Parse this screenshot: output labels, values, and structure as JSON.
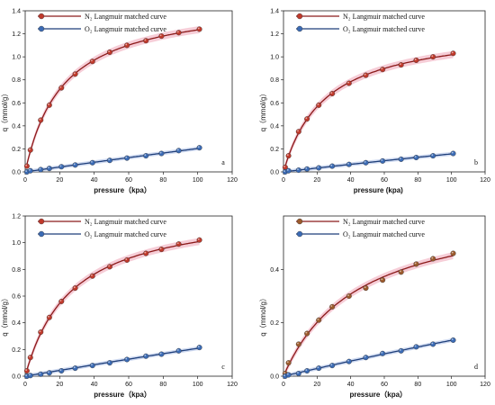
{
  "chart_data": [
    {
      "type": "line",
      "panel_label": "a",
      "xlabel": "pressure（kpa）",
      "ylabel": "q（mmol/g）",
      "xlim": [
        0,
        120
      ],
      "ylim": [
        0,
        1.4
      ],
      "xticks": [
        "0",
        "20",
        "40",
        "60",
        "80",
        "100",
        "120"
      ],
      "yticks": [
        "0.0",
        "0.2",
        "0.4",
        "0.6",
        "0.8",
        "1.0",
        "1.2",
        "1.4"
      ],
      "legend_placement": "top-left",
      "grid": false,
      "series": [
        {
          "name": "N₂ Langmuir matched curve",
          "marker_color": "#c0392b",
          "line_color": "#8b1a1a",
          "shade_color": "#f2b8c6",
          "x": [
            1,
            3,
            9,
            14,
            21,
            29,
            39,
            49,
            59,
            70,
            79,
            89,
            101
          ],
          "y": [
            0.05,
            0.19,
            0.45,
            0.58,
            0.73,
            0.85,
            0.96,
            1.04,
            1.1,
            1.14,
            1.18,
            1.21,
            1.24
          ]
        },
        {
          "name": "O₂ Langmuir matched curve",
          "marker_color": "#3b6bb5",
          "line_color": "#1f3f7a",
          "shade_color": "#b9c9ea",
          "x": [
            1,
            3,
            9,
            14,
            21,
            29,
            39,
            49,
            59,
            70,
            79,
            89,
            101
          ],
          "y": [
            0.0,
            0.01,
            0.02,
            0.03,
            0.045,
            0.06,
            0.08,
            0.1,
            0.12,
            0.14,
            0.16,
            0.185,
            0.21
          ]
        }
      ]
    },
    {
      "type": "line",
      "panel_label": "b",
      "xlabel": "pressure (kpa)",
      "ylabel": "q（mmol/g）",
      "xlim": [
        0,
        120
      ],
      "ylim": [
        0,
        1.4
      ],
      "xticks": [
        "0",
        "20",
        "40",
        "60",
        "80",
        "100",
        "120"
      ],
      "yticks": [
        "0.0",
        "0.2",
        "0.4",
        "0.6",
        "0.8",
        "1.0",
        "1.2",
        "1.4"
      ],
      "legend_placement": "top-left",
      "grid": false,
      "series": [
        {
          "name": "N₂ Langmuir matched curve",
          "marker_color": "#c0392b",
          "line_color": "#8b1a1a",
          "shade_color": "#f2b8c6",
          "x": [
            1,
            3,
            9,
            14,
            21,
            29,
            39,
            49,
            59,
            70,
            79,
            89,
            101
          ],
          "y": [
            0.04,
            0.14,
            0.35,
            0.46,
            0.58,
            0.68,
            0.77,
            0.84,
            0.89,
            0.93,
            0.97,
            1.0,
            1.03
          ]
        },
        {
          "name": "O₂ Langmuir matched curve",
          "marker_color": "#3b6bb5",
          "line_color": "#1f3f7a",
          "shade_color": "#b9c9ea",
          "x": [
            1,
            3,
            9,
            14,
            21,
            29,
            39,
            49,
            59,
            70,
            79,
            89,
            101
          ],
          "y": [
            0.0,
            0.01,
            0.015,
            0.025,
            0.035,
            0.05,
            0.065,
            0.08,
            0.095,
            0.11,
            0.125,
            0.14,
            0.16
          ]
        }
      ]
    },
    {
      "type": "line",
      "panel_label": "c",
      "xlabel": "pressure（kpa）",
      "ylabel": "q（mmol/g）",
      "xlim": [
        0,
        120
      ],
      "ylim": [
        0,
        1.2
      ],
      "xticks": [
        "0",
        "20",
        "40",
        "60",
        "80",
        "100",
        "120"
      ],
      "yticks": [
        "0.0",
        "0.2",
        "0.4",
        "0.6",
        "0.8",
        "1.0",
        "1.2"
      ],
      "legend_placement": "top-left",
      "grid": false,
      "series": [
        {
          "name": "N₂ Langmuir matched curve",
          "marker_color": "#c0392b",
          "line_color": "#8b1a1a",
          "shade_color": "#f2b8c6",
          "x": [
            1,
            3,
            9,
            14,
            21,
            29,
            39,
            49,
            59,
            70,
            79,
            89,
            101
          ],
          "y": [
            0.04,
            0.14,
            0.33,
            0.44,
            0.56,
            0.66,
            0.75,
            0.82,
            0.87,
            0.92,
            0.95,
            0.99,
            1.02
          ]
        },
        {
          "name": "O₂ Langmuir matched curve",
          "marker_color": "#3b6bb5",
          "line_color": "#1f3f7a",
          "shade_color": "#b9c9ea",
          "x": [
            1,
            3,
            9,
            14,
            21,
            29,
            39,
            49,
            59,
            70,
            79,
            89,
            101
          ],
          "y": [
            0.0,
            0.005,
            0.015,
            0.025,
            0.04,
            0.06,
            0.08,
            0.1,
            0.125,
            0.15,
            0.165,
            0.19,
            0.215
          ]
        }
      ]
    },
    {
      "type": "line",
      "panel_label": "d",
      "xlabel": "pressure（kpa）",
      "ylabel": "q（mmol/g）",
      "xlim": [
        0,
        120
      ],
      "ylim": [
        0,
        0.6
      ],
      "xticks": [
        "0",
        "20",
        "40",
        "60",
        "80",
        "100",
        "120"
      ],
      "yticks": [
        "0.0",
        "0.2",
        "0.4"
      ],
      "legend_placement": "top-left",
      "grid": false,
      "series": [
        {
          "name": "N₂ Langmuir matched curve",
          "marker_color": "#9c5a2c",
          "line_color": "#8b1a1a",
          "shade_color": "#f2b8c6",
          "x": [
            1,
            3,
            9,
            14,
            21,
            29,
            39,
            49,
            59,
            70,
            79,
            89,
            101
          ],
          "y": [
            0.01,
            0.05,
            0.12,
            0.16,
            0.21,
            0.26,
            0.3,
            0.33,
            0.36,
            0.39,
            0.42,
            0.44,
            0.46
          ]
        },
        {
          "name": "O₂ Langmuir matched curve",
          "marker_color": "#3b6bb5",
          "line_color": "#1f3f7a",
          "shade_color": "#b9c9ea",
          "x": [
            1,
            3,
            9,
            14,
            21,
            29,
            39,
            49,
            59,
            70,
            79,
            89,
            101
          ],
          "y": [
            0.0,
            0.005,
            0.01,
            0.02,
            0.03,
            0.04,
            0.055,
            0.07,
            0.085,
            0.095,
            0.11,
            0.12,
            0.135
          ]
        }
      ]
    }
  ]
}
